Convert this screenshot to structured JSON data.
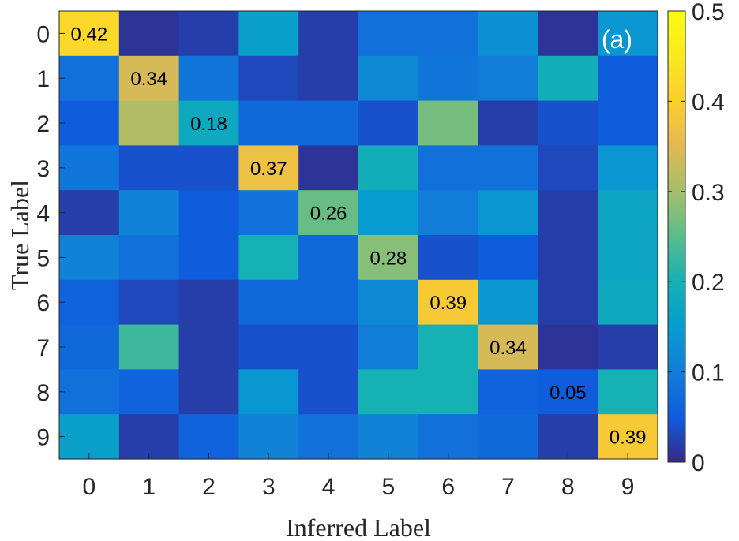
{
  "chart_data": {
    "type": "heatmap",
    "panel_label": "(a)",
    "xlabel": "Inferred Label",
    "ylabel": "True Label",
    "x_categories": [
      "0",
      "1",
      "2",
      "3",
      "4",
      "5",
      "6",
      "7",
      "8",
      "9"
    ],
    "y_categories": [
      "0",
      "1",
      "2",
      "3",
      "4",
      "5",
      "6",
      "7",
      "8",
      "9"
    ],
    "values": [
      [
        0.42,
        0.01,
        0.02,
        0.16,
        0.02,
        0.08,
        0.08,
        0.13,
        0.01,
        0.14
      ],
      [
        0.08,
        0.34,
        0.09,
        0.03,
        0.02,
        0.12,
        0.09,
        0.1,
        0.19,
        0.05
      ],
      [
        0.05,
        0.31,
        0.18,
        0.07,
        0.07,
        0.04,
        0.27,
        0.02,
        0.04,
        0.05
      ],
      [
        0.09,
        0.04,
        0.04,
        0.37,
        0.01,
        0.19,
        0.08,
        0.08,
        0.03,
        0.14
      ],
      [
        0.02,
        0.11,
        0.05,
        0.08,
        0.26,
        0.15,
        0.1,
        0.14,
        0.02,
        0.17
      ],
      [
        0.11,
        0.08,
        0.05,
        0.2,
        0.07,
        0.28,
        0.04,
        0.05,
        0.02,
        0.17
      ],
      [
        0.06,
        0.03,
        0.02,
        0.07,
        0.07,
        0.12,
        0.39,
        0.14,
        0.02,
        0.18
      ],
      [
        0.07,
        0.23,
        0.02,
        0.04,
        0.04,
        0.1,
        0.2,
        0.34,
        0.01,
        0.02
      ],
      [
        0.08,
        0.06,
        0.02,
        0.14,
        0.04,
        0.2,
        0.2,
        0.06,
        0.05,
        0.2
      ],
      [
        0.16,
        0.02,
        0.06,
        0.11,
        0.08,
        0.11,
        0.08,
        0.07,
        0.02,
        0.39
      ]
    ],
    "annotated_cells": [
      {
        "row": 0,
        "col": 0,
        "label": "0.42"
      },
      {
        "row": 1,
        "col": 1,
        "label": "0.34"
      },
      {
        "row": 2,
        "col": 2,
        "label": "0.18"
      },
      {
        "row": 3,
        "col": 3,
        "label": "0.37"
      },
      {
        "row": 4,
        "col": 4,
        "label": "0.26"
      },
      {
        "row": 5,
        "col": 5,
        "label": "0.28"
      },
      {
        "row": 6,
        "col": 6,
        "label": "0.39"
      },
      {
        "row": 7,
        "col": 7,
        "label": "0.34"
      },
      {
        "row": 8,
        "col": 8,
        "label": "0.05"
      },
      {
        "row": 9,
        "col": 9,
        "label": "0.39"
      }
    ],
    "colorbar": {
      "colormap": "parula",
      "range": [
        0,
        0.5
      ],
      "ticks": [
        "0",
        "0.1",
        "0.2",
        "0.3",
        "0.4",
        "0.5"
      ]
    }
  }
}
